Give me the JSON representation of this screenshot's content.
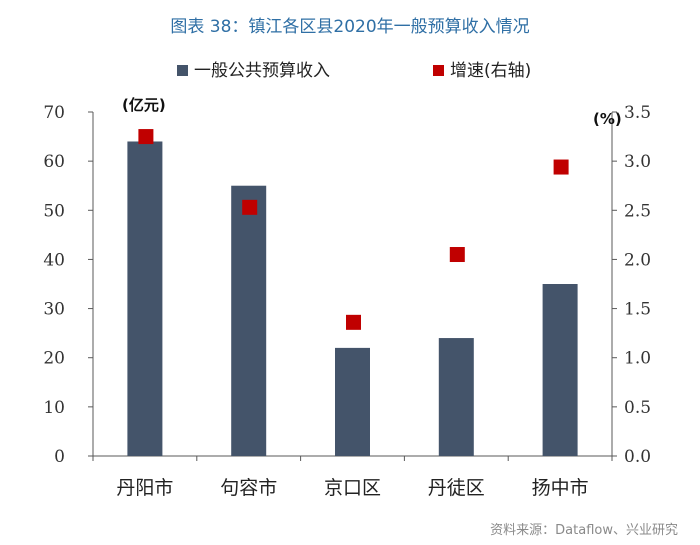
{
  "title": "图表 38：镇江各区县2020年一般预算收入情况",
  "source": "资料来源：Dataflow、兴业研究",
  "colors": {
    "bar": "#44546a",
    "marker": "#c00000",
    "title": "#2f6fa5",
    "axis": "#595959"
  },
  "chart_data": {
    "type": "bar",
    "categories": [
      "丹阳市",
      "句容市",
      "京口区",
      "丹徒区",
      "扬中市"
    ],
    "series": [
      {
        "name": "一般公共预算收入",
        "kind": "bar",
        "axis": "left",
        "values": [
          64,
          55,
          22,
          24,
          35
        ]
      },
      {
        "name": "增速(右轴)",
        "kind": "scatter",
        "axis": "right",
        "values": [
          3.25,
          2.53,
          1.36,
          2.05,
          2.94
        ]
      }
    ],
    "y_left": {
      "label": "(亿元)",
      "min": 0,
      "max": 70,
      "ticks": [
        "0",
        "10",
        "20",
        "30",
        "40",
        "50",
        "60",
        "70"
      ]
    },
    "y_right": {
      "label": "(%)",
      "min": 0,
      "max": 3.5,
      "ticks": [
        "0.0",
        "0.5",
        "1.0",
        "1.5",
        "2.0",
        "2.5",
        "3.0",
        "3.5"
      ]
    },
    "legend_position": "top",
    "grid": false
  }
}
